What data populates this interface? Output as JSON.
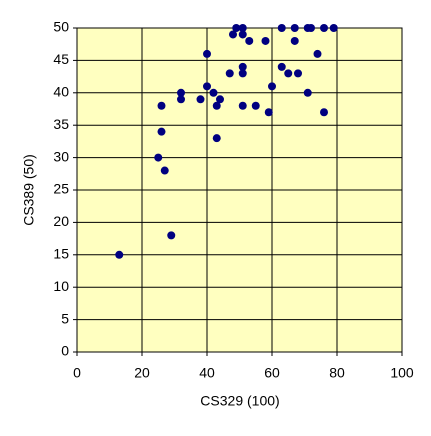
{
  "chart_data": {
    "type": "scatter",
    "x_label": "CS329 (100)",
    "y_label": "CS389 (50)",
    "x": [
      13,
      25,
      26,
      26,
      27,
      29,
      32,
      32,
      38,
      40,
      40,
      42,
      43,
      43,
      44,
      47,
      48,
      49,
      51,
      51,
      51,
      51,
      51,
      53,
      55,
      58,
      59,
      60,
      63,
      63,
      65,
      67,
      67,
      68,
      71,
      71,
      72,
      74,
      76,
      76,
      79
    ],
    "values": [
      15,
      30,
      34,
      38,
      28,
      18,
      39,
      40,
      39,
      41,
      46,
      40,
      38,
      33,
      39,
      43,
      49,
      50,
      50,
      49,
      44,
      43,
      38,
      48,
      38,
      48,
      37,
      41,
      50,
      44,
      43,
      50,
      48,
      43,
      50,
      40,
      50,
      46,
      37,
      50,
      50
    ],
    "color": "#000080",
    "background": "#ffffc0",
    "xlim": [
      0,
      100
    ],
    "xticks": [
      0,
      20,
      40,
      60,
      80,
      100
    ],
    "ylim": [
      0,
      50
    ],
    "yticks": [
      0,
      5,
      10,
      15,
      20,
      25,
      30,
      35,
      40,
      45,
      50
    ],
    "grid": true
  }
}
